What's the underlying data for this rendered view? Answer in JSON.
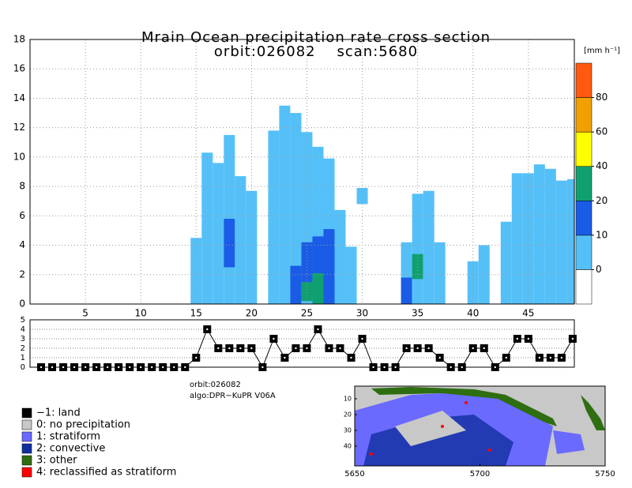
{
  "chart_data": [
    {
      "type": "heatmap",
      "title": "Mrain Ocean precipitation rate cross section",
      "subtitle": "orbit:026082    scan:5680",
      "xlim": [
        0,
        49.15
      ],
      "ylim": [
        0,
        18
      ],
      "xticks": [
        5,
        10,
        15,
        20,
        25,
        30,
        35,
        40,
        45
      ],
      "yticks": [
        0,
        2,
        4,
        6,
        8,
        10,
        12,
        14,
        16,
        18
      ],
      "grid": true,
      "colorbar": {
        "label": "[mm h⁻¹]",
        "ticks": [
          0,
          10,
          20,
          40,
          60,
          80
        ],
        "colors": [
          "#ffffff",
          "#55c0f8",
          "#1a5ce6",
          "#10a070",
          "#ffff00",
          "#f0a000",
          "#ff5a10"
        ]
      },
      "columns": [
        {
          "x": 15,
          "segments": [
            [
              0,
              4.5,
              5
            ]
          ]
        },
        {
          "x": 16,
          "segments": [
            [
              0,
              10.3,
              5
            ]
          ]
        },
        {
          "x": 17,
          "segments": [
            [
              0,
              9.6,
              5
            ]
          ]
        },
        {
          "x": 18,
          "segments": [
            [
              0,
              11.5,
              5
            ],
            [
              2.5,
              5.8,
              15
            ]
          ]
        },
        {
          "x": 19,
          "segments": [
            [
              0,
              8.7,
              5
            ]
          ]
        },
        {
          "x": 20,
          "segments": [
            [
              0,
              7.7,
              5
            ]
          ]
        },
        {
          "x": 22,
          "segments": [
            [
              0,
              11.8,
              5
            ]
          ]
        },
        {
          "x": 23,
          "segments": [
            [
              0,
              13.5,
              5
            ]
          ]
        },
        {
          "x": 24,
          "segments": [
            [
              0,
              13,
              5
            ],
            [
              0,
              2.6,
              15
            ]
          ]
        },
        {
          "x": 25,
          "segments": [
            [
              0,
              11.7,
              5
            ],
            [
              0.5,
              4.2,
              15
            ],
            [
              0.2,
              1.5,
              30
            ]
          ]
        },
        {
          "x": 26,
          "segments": [
            [
              0,
              10.7,
              5
            ],
            [
              0,
              4.6,
              15
            ],
            [
              0,
              2.1,
              30
            ]
          ]
        },
        {
          "x": 27,
          "segments": [
            [
              0,
              9.9,
              5
            ],
            [
              0,
              5.1,
              15
            ]
          ]
        },
        {
          "x": 28,
          "segments": [
            [
              0,
              6.4,
              5
            ]
          ]
        },
        {
          "x": 29,
          "segments": [
            [
              0,
              3.9,
              5
            ]
          ]
        },
        {
          "x": 30,
          "segments": [
            [
              6.8,
              7.9,
              5
            ]
          ]
        },
        {
          "x": 34,
          "segments": [
            [
              0,
              4.2,
              5
            ],
            [
              0,
              1.8,
              15
            ]
          ]
        },
        {
          "x": 35,
          "segments": [
            [
              0,
              7.5,
              5
            ],
            [
              1.7,
              3.4,
              30
            ]
          ]
        },
        {
          "x": 36,
          "segments": [
            [
              0,
              7.7,
              5
            ]
          ]
        },
        {
          "x": 37,
          "segments": [
            [
              0,
              4.2,
              5
            ]
          ]
        },
        {
          "x": 40,
          "segments": [
            [
              0,
              2.9,
              5
            ]
          ]
        },
        {
          "x": 41,
          "segments": [
            [
              0,
              4,
              5
            ]
          ]
        },
        {
          "x": 43,
          "segments": [
            [
              0,
              5.6,
              5
            ]
          ]
        },
        {
          "x": 44,
          "segments": [
            [
              0,
              8.9,
              5
            ]
          ]
        },
        {
          "x": 45,
          "segments": [
            [
              0,
              8.9,
              5
            ]
          ]
        },
        {
          "x": 46,
          "segments": [
            [
              0,
              9.5,
              5
            ]
          ]
        },
        {
          "x": 47,
          "segments": [
            [
              0,
              9.2,
              5
            ]
          ]
        },
        {
          "x": 48,
          "segments": [
            [
              0,
              8.4,
              5
            ]
          ]
        },
        {
          "x": 49,
          "segments": [
            [
              0,
              8.5,
              5
            ]
          ]
        }
      ]
    },
    {
      "type": "line",
      "xlim": [
        0,
        49.15
      ],
      "ylim": [
        0,
        5
      ],
      "yticks": [
        0,
        1,
        2,
        3,
        4,
        5
      ],
      "grid": true,
      "x": [
        1,
        2,
        3,
        4,
        5,
        6,
        7,
        8,
        9,
        10,
        11,
        12,
        13,
        14,
        15,
        16,
        17,
        18,
        19,
        20,
        21,
        22,
        23,
        24,
        25,
        26,
        27,
        28,
        29,
        30,
        31,
        32,
        33,
        34,
        35,
        36,
        37,
        38,
        39,
        40,
        41,
        42,
        43,
        44,
        45,
        46,
        47,
        48,
        49
      ],
      "values": [
        0,
        0,
        0,
        0,
        0,
        0,
        0,
        0,
        0,
        0,
        0,
        0,
        0,
        0,
        1,
        4,
        2,
        2,
        2,
        2,
        0,
        3,
        1,
        2,
        2,
        4,
        2,
        2,
        1,
        3,
        0,
        0,
        0,
        2,
        2,
        2,
        1,
        0,
        0,
        2,
        2,
        0,
        1,
        3,
        3,
        1,
        1,
        1,
        3
      ],
      "color": "#000000",
      "notes": [
        "orbit:026082",
        "algo:DPR−KuPR V06A"
      ],
      "legend": [
        {
          "label": "−1: land",
          "color": "#000000"
        },
        {
          "label": "0: no precipitation",
          "color": "#c8c8c8"
        },
        {
          "label": "1: stratiform",
          "color": "#6a6aff"
        },
        {
          "label": "2: convective",
          "color": "#1030a0"
        },
        {
          "label": "3: other",
          "color": "#2e6e10"
        },
        {
          "label": "4: reclassified as stratiform",
          "color": "#ff0000"
        }
      ]
    },
    {
      "type": "map",
      "xlim": [
        5650,
        5750
      ],
      "ylim": [
        2,
        52.5
      ],
      "xticks": [
        5650,
        5700,
        5750
      ],
      "yticks": [
        10,
        20,
        30,
        40
      ]
    }
  ]
}
